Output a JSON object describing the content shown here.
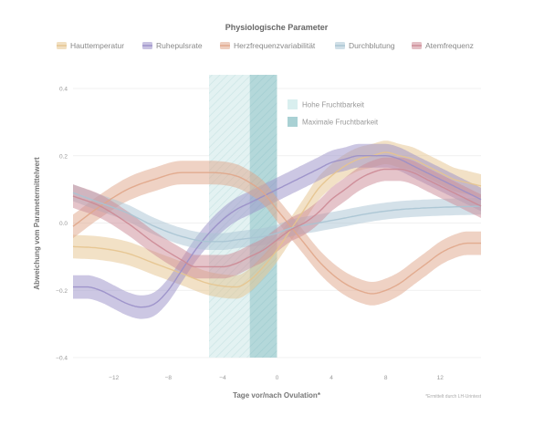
{
  "chart_data": {
    "type": "area",
    "title": "",
    "legend_title": "Physiologische Parameter",
    "xlabel": "Tage vor/nach Ovulation*",
    "ylabel": "Abweichung vom Parametermittelwert",
    "footnote": "*Ermittelt durch LH-Urintest",
    "xlim": [
      -15,
      15
    ],
    "ylim": [
      -0.4,
      0.4
    ],
    "x_ticks": [
      -12,
      -8,
      -4,
      0,
      4,
      8,
      12
    ],
    "y_ticks": [
      -0.4,
      -0.2,
      0.0,
      0.2,
      0.4
    ],
    "grid": "horizontal",
    "legend_position": "top",
    "series": [
      {
        "name": "Hauttemperatur",
        "color": "#e5c48e",
        "x": [
          -15,
          -13,
          -11,
          -9,
          -7,
          -5,
          -3,
          -2,
          -1,
          0,
          1,
          2,
          3,
          4,
          5,
          6,
          7,
          8,
          9,
          10,
          11,
          12,
          13,
          14,
          15
        ],
        "values": [
          -0.07,
          -0.075,
          -0.09,
          -0.12,
          -0.15,
          -0.18,
          -0.19,
          -0.17,
          -0.13,
          -0.08,
          -0.02,
          0.04,
          0.1,
          0.14,
          0.17,
          0.19,
          0.2,
          0.21,
          0.2,
          0.19,
          0.17,
          0.15,
          0.13,
          0.12,
          0.11
        ],
        "band": 0.035
      },
      {
        "name": "Ruhepulsrate",
        "color": "#9a8fc8",
        "x": [
          -15,
          -14,
          -13,
          -12,
          -11,
          -10,
          -9,
          -8,
          -7,
          -6,
          -5,
          -4,
          -3,
          -2,
          -1,
          0,
          1,
          2,
          3,
          4,
          5,
          6,
          7,
          8,
          9,
          10,
          11,
          12,
          13,
          14,
          15
        ],
        "values": [
          -0.19,
          -0.19,
          -0.2,
          -0.22,
          -0.24,
          -0.25,
          -0.24,
          -0.2,
          -0.14,
          -0.08,
          -0.03,
          0.01,
          0.04,
          0.06,
          0.08,
          0.1,
          0.12,
          0.14,
          0.16,
          0.18,
          0.19,
          0.2,
          0.2,
          0.2,
          0.19,
          0.17,
          0.15,
          0.13,
          0.11,
          0.09,
          0.07
        ],
        "band": 0.035
      },
      {
        "name": "Herzfrequenzvariabilität",
        "color": "#e0a68a",
        "x": [
          -15,
          -13,
          -11,
          -9,
          -7,
          -5,
          -3,
          -2,
          -1,
          0,
          1,
          2,
          3,
          4,
          5,
          6,
          7,
          8,
          9,
          10,
          11,
          12,
          13,
          14,
          15
        ],
        "values": [
          -0.01,
          0.05,
          0.1,
          0.13,
          0.15,
          0.15,
          0.14,
          0.12,
          0.09,
          0.04,
          -0.01,
          -0.06,
          -0.11,
          -0.15,
          -0.18,
          -0.2,
          -0.21,
          -0.2,
          -0.18,
          -0.15,
          -0.12,
          -0.09,
          -0.07,
          -0.06,
          -0.06
        ],
        "band": 0.035
      },
      {
        "name": "Durchblutung",
        "color": "#a9c4d3",
        "x": [
          -15,
          -13,
          -11,
          -9,
          -7,
          -5,
          -4,
          -3,
          -2,
          -1,
          0,
          1,
          3,
          5,
          7,
          9,
          11,
          13,
          15
        ],
        "values": [
          0.09,
          0.06,
          0.03,
          -0.01,
          -0.04,
          -0.055,
          -0.055,
          -0.05,
          -0.045,
          -0.04,
          -0.03,
          -0.015,
          0.0,
          0.015,
          0.03,
          0.04,
          0.045,
          0.048,
          0.05
        ],
        "band": 0.025
      },
      {
        "name": "Atemfrequenz",
        "color": "#cc8a95",
        "x": [
          -15,
          -13,
          -11,
          -9,
          -7,
          -6,
          -5,
          -4,
          -3,
          -2,
          -1,
          0,
          1,
          2,
          3,
          4,
          5,
          6,
          7,
          8,
          9,
          10,
          11,
          12,
          13,
          14,
          15
        ],
        "values": [
          0.08,
          0.05,
          0.0,
          -0.06,
          -0.11,
          -0.13,
          -0.13,
          -0.13,
          -0.12,
          -0.1,
          -0.08,
          -0.05,
          -0.02,
          0.0,
          0.03,
          0.07,
          0.1,
          0.13,
          0.15,
          0.16,
          0.16,
          0.15,
          0.13,
          0.11,
          0.09,
          0.07,
          0.05
        ],
        "band": 0.035
      }
    ],
    "regions": [
      {
        "label": "Hohe Fruchtbarkeit",
        "x": [
          -5,
          0
        ],
        "color": "#d8eeee",
        "hatched": true
      },
      {
        "label": "Maximale Fruchtbarkeit",
        "x": [
          -2,
          0
        ],
        "color": "#a9d1d4",
        "hatched": true
      }
    ]
  }
}
